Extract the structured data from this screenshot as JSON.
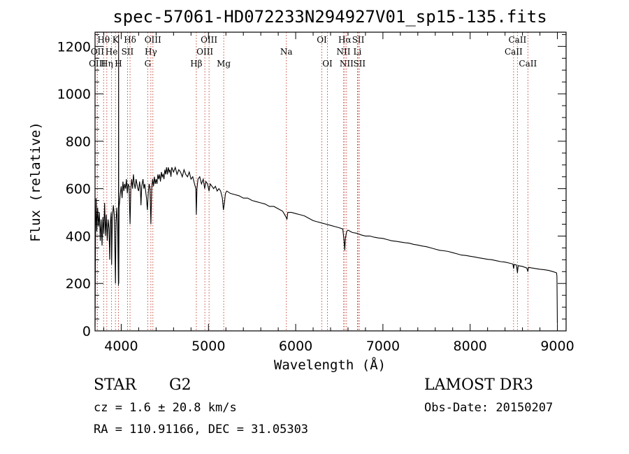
{
  "chart_data": {
    "type": "line",
    "title": "spec-57061-HD072233N294927V01_sp15-135.fits",
    "xlabel": "Wavelength (Å)",
    "ylabel": "Flux (relative)",
    "xlim": [
      3700,
      9100
    ],
    "ylim": [
      0,
      1260
    ],
    "xticks": [
      4000,
      5000,
      6000,
      7000,
      8000,
      9000
    ],
    "yticks": [
      0,
      200,
      400,
      600,
      800,
      1000,
      1200
    ],
    "spectrum": [
      [
        3700,
        20
      ],
      [
        3705,
        380
      ],
      [
        3712,
        560
      ],
      [
        3720,
        420
      ],
      [
        3730,
        520
      ],
      [
        3740,
        440
      ],
      [
        3750,
        500
      ],
      [
        3760,
        380
      ],
      [
        3770,
        470
      ],
      [
        3780,
        360
      ],
      [
        3790,
        480
      ],
      [
        3800,
        410
      ],
      [
        3810,
        540
      ],
      [
        3820,
        400
      ],
      [
        3830,
        490
      ],
      [
        3840,
        380
      ],
      [
        3850,
        470
      ],
      [
        3860,
        430
      ],
      [
        3868,
        300
      ],
      [
        3875,
        450
      ],
      [
        3885,
        500
      ],
      [
        3890,
        280
      ],
      [
        3898,
        470
      ],
      [
        3910,
        530
      ],
      [
        3920,
        490
      ],
      [
        3930,
        300
      ],
      [
        3934,
        200
      ],
      [
        3940,
        460
      ],
      [
        3950,
        520
      ],
      [
        3960,
        420
      ],
      [
        3968,
        190
      ],
      [
        3970,
        1250
      ],
      [
        3972,
        200
      ],
      [
        3976,
        520
      ],
      [
        3990,
        580
      ],
      [
        4000,
        610
      ],
      [
        4010,
        560
      ],
      [
        4020,
        630
      ],
      [
        4030,
        590
      ],
      [
        4040,
        620
      ],
      [
        4050,
        600
      ],
      [
        4060,
        640
      ],
      [
        4070,
        580
      ],
      [
        4080,
        620
      ],
      [
        4090,
        610
      ],
      [
        4101,
        450
      ],
      [
        4110,
        600
      ],
      [
        4120,
        640
      ],
      [
        4130,
        600
      ],
      [
        4140,
        660
      ],
      [
        4150,
        620
      ],
      [
        4160,
        600
      ],
      [
        4170,
        640
      ],
      [
        4180,
        620
      ],
      [
        4190,
        600
      ],
      [
        4200,
        590
      ],
      [
        4210,
        630
      ],
      [
        4220,
        600
      ],
      [
        4226,
        530
      ],
      [
        4235,
        610
      ],
      [
        4250,
        640
      ],
      [
        4260,
        600
      ],
      [
        4270,
        620
      ],
      [
        4280,
        590
      ],
      [
        4290,
        560
      ],
      [
        4300,
        510
      ],
      [
        4310,
        580
      ],
      [
        4320,
        620
      ],
      [
        4330,
        600
      ],
      [
        4340,
        450
      ],
      [
        4350,
        600
      ],
      [
        4360,
        640
      ],
      [
        4370,
        610
      ],
      [
        4380,
        650
      ],
      [
        4390,
        620
      ],
      [
        4400,
        640
      ],
      [
        4410,
        620
      ],
      [
        4420,
        660
      ],
      [
        4430,
        640
      ],
      [
        4440,
        660
      ],
      [
        4450,
        630
      ],
      [
        4460,
        670
      ],
      [
        4470,
        650
      ],
      [
        4480,
        660
      ],
      [
        4490,
        640
      ],
      [
        4500,
        680
      ],
      [
        4510,
        660
      ],
      [
        4520,
        690
      ],
      [
        4530,
        660
      ],
      [
        4540,
        690
      ],
      [
        4550,
        670
      ],
      [
        4560,
        680
      ],
      [
        4570,
        650
      ],
      [
        4580,
        690
      ],
      [
        4600,
        670
      ],
      [
        4620,
        690
      ],
      [
        4640,
        660
      ],
      [
        4660,
        680
      ],
      [
        4680,
        670
      ],
      [
        4700,
        650
      ],
      [
        4720,
        680
      ],
      [
        4740,
        660
      ],
      [
        4760,
        650
      ],
      [
        4780,
        670
      ],
      [
        4800,
        640
      ],
      [
        4820,
        650
      ],
      [
        4840,
        620
      ],
      [
        4855,
        600
      ],
      [
        4861,
        490
      ],
      [
        4868,
        600
      ],
      [
        4880,
        640
      ],
      [
        4900,
        650
      ],
      [
        4920,
        620
      ],
      [
        4940,
        640
      ],
      [
        4957,
        600
      ],
      [
        4970,
        630
      ],
      [
        4990,
        620
      ],
      [
        5007,
        590
      ],
      [
        5020,
        620
      ],
      [
        5040,
        610
      ],
      [
        5060,
        600
      ],
      [
        5080,
        610
      ],
      [
        5100,
        590
      ],
      [
        5120,
        600
      ],
      [
        5140,
        590
      ],
      [
        5160,
        560
      ],
      [
        5167,
        530
      ],
      [
        5172,
        510
      ],
      [
        5183,
        540
      ],
      [
        5195,
        580
      ],
      [
        5210,
        590
      ],
      [
        5250,
        580
      ],
      [
        5300,
        575
      ],
      [
        5350,
        570
      ],
      [
        5400,
        560
      ],
      [
        5450,
        560
      ],
      [
        5500,
        550
      ],
      [
        5550,
        545
      ],
      [
        5600,
        540
      ],
      [
        5650,
        535
      ],
      [
        5700,
        525
      ],
      [
        5750,
        525
      ],
      [
        5800,
        515
      ],
      [
        5850,
        505
      ],
      [
        5890,
        480
      ],
      [
        5900,
        470
      ],
      [
        5910,
        500
      ],
      [
        5950,
        500
      ],
      [
        6000,
        495
      ],
      [
        6050,
        490
      ],
      [
        6100,
        485
      ],
      [
        6150,
        475
      ],
      [
        6200,
        465
      ],
      [
        6250,
        460
      ],
      [
        6300,
        455
      ],
      [
        6350,
        450
      ],
      [
        6400,
        445
      ],
      [
        6450,
        440
      ],
      [
        6500,
        435
      ],
      [
        6540,
        430
      ],
      [
        6555,
        380
      ],
      [
        6563,
        340
      ],
      [
        6570,
        390
      ],
      [
        6585,
        420
      ],
      [
        6600,
        425
      ],
      [
        6650,
        415
      ],
      [
        6700,
        412
      ],
      [
        6750,
        405
      ],
      [
        6800,
        400
      ],
      [
        6850,
        400
      ],
      [
        6900,
        395
      ],
      [
        6950,
        392
      ],
      [
        7000,
        390
      ],
      [
        7050,
        385
      ],
      [
        7100,
        380
      ],
      [
        7150,
        378
      ],
      [
        7200,
        375
      ],
      [
        7250,
        372
      ],
      [
        7300,
        370
      ],
      [
        7350,
        365
      ],
      [
        7400,
        362
      ],
      [
        7450,
        358
      ],
      [
        7500,
        355
      ],
      [
        7550,
        350
      ],
      [
        7600,
        345
      ],
      [
        7650,
        340
      ],
      [
        7700,
        338
      ],
      [
        7750,
        335
      ],
      [
        7800,
        330
      ],
      [
        7850,
        325
      ],
      [
        7900,
        320
      ],
      [
        7950,
        318
      ],
      [
        8000,
        315
      ],
      [
        8050,
        312
      ],
      [
        8100,
        308
      ],
      [
        8150,
        305
      ],
      [
        8200,
        302
      ],
      [
        8250,
        300
      ],
      [
        8300,
        296
      ],
      [
        8350,
        292
      ],
      [
        8400,
        290
      ],
      [
        8450,
        286
      ],
      [
        8490,
        282
      ],
      [
        8498,
        262
      ],
      [
        8505,
        280
      ],
      [
        8530,
        278
      ],
      [
        8542,
        245
      ],
      [
        8550,
        275
      ],
      [
        8600,
        272
      ],
      [
        8650,
        265
      ],
      [
        8662,
        250
      ],
      [
        8670,
        268
      ],
      [
        8700,
        266
      ],
      [
        8750,
        263
      ],
      [
        8800,
        260
      ],
      [
        8850,
        258
      ],
      [
        8900,
        255
      ],
      [
        8950,
        250
      ],
      [
        8990,
        245
      ],
      [
        8995,
        230
      ],
      [
        9000,
        30
      ]
    ],
    "line_marks": [
      {
        "label": "Hθ",
        "wavelength": 3798,
        "row": 0
      },
      {
        "label": "OII",
        "wavelength": 3727,
        "row": 1
      },
      {
        "label": "OIII",
        "wavelength": 3725,
        "row": 2
      },
      {
        "label": "Hη",
        "wavelength": 3835,
        "row": 2
      },
      {
        "label": "He",
        "wavelength": 3889,
        "row": 1
      },
      {
        "label": "K",
        "wavelength": 3934,
        "row": 0
      },
      {
        "label": "H",
        "wavelength": 3968,
        "row": 2
      },
      {
        "label": "Hδ",
        "wavelength": 4101,
        "row": 0
      },
      {
        "label": "SII",
        "wavelength": 4072,
        "row": 1
      },
      {
        "label": "OIII",
        "wavelength": 4363,
        "row": 0
      },
      {
        "label": "Hγ",
        "wavelength": 4340,
        "row": 1
      },
      {
        "label": "G",
        "wavelength": 4304,
        "row": 2
      },
      {
        "label": "Hβ",
        "wavelength": 4861,
        "row": 2
      },
      {
        "label": "OIII",
        "wavelength": 5007,
        "row": 0
      },
      {
        "label": "OIII",
        "wavelength": 4959,
        "row": 1
      },
      {
        "label": "Mg",
        "wavelength": 5175,
        "row": 2
      },
      {
        "label": "Na",
        "wavelength": 5893,
        "row": 1
      },
      {
        "label": "OI",
        "wavelength": 6300,
        "row": 0
      },
      {
        "label": "OI",
        "wavelength": 6364,
        "row": 2
      },
      {
        "label": "Hα",
        "wavelength": 6563,
        "row": 0
      },
      {
        "label": "NII",
        "wavelength": 6548,
        "row": 1
      },
      {
        "label": "NII",
        "wavelength": 6583,
        "row": 2
      },
      {
        "label": "SII",
        "wavelength": 6717,
        "row": 0
      },
      {
        "label": "Li",
        "wavelength": 6708,
        "row": 1
      },
      {
        "label": "SII",
        "wavelength": 6731,
        "row": 2
      },
      {
        "label": "CaII",
        "wavelength": 8542,
        "row": 0
      },
      {
        "label": "CaII",
        "wavelength": 8498,
        "row": 1
      },
      {
        "label": "CaII",
        "wavelength": 8662,
        "row": 2
      }
    ]
  },
  "info": {
    "class": "STAR",
    "subclass": "G2",
    "survey": "LAMOST DR3",
    "cz": "cz = 1.6 ± 20.8 km/s",
    "obs_date": "Obs-Date: 20150207",
    "radec": "RA = 110.91166, DEC =  31.05303"
  }
}
